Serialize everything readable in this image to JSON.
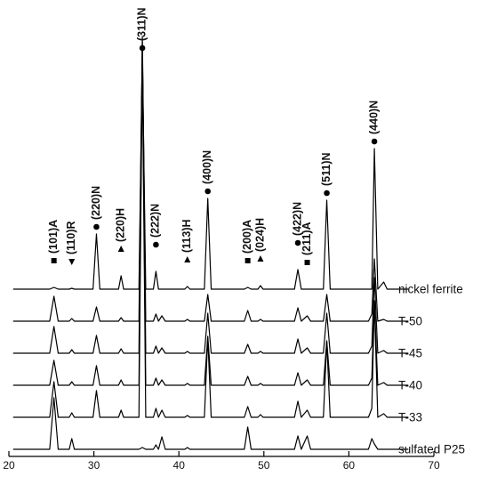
{
  "chart_data": {
    "type": "line",
    "color": "#000000",
    "xlim": [
      20,
      70
    ],
    "xticks": [
      20,
      30,
      40,
      50,
      60,
      70
    ],
    "x": [
      20.5,
      24.8,
      25.3,
      25.8,
      27.1,
      27.4,
      27.7,
      29.9,
      30.3,
      30.7,
      32.9,
      33.2,
      33.5,
      35.3,
      35.7,
      36.1,
      37.0,
      37.3,
      37.6,
      38.0,
      38.4,
      40.7,
      41.0,
      41.3,
      43.0,
      43.4,
      43.8,
      47.7,
      48.1,
      48.5,
      49.3,
      49.6,
      49.9,
      53.6,
      54.0,
      54.4,
      55.1,
      55.5,
      57.0,
      57.4,
      57.8,
      62.3,
      62.7,
      63.0,
      63.4,
      64.1,
      64.5,
      67.0
    ],
    "series": [
      {
        "name": "nickel ferrite",
        "values": [
          0,
          0,
          2,
          0,
          0,
          1,
          0,
          0,
          62,
          0,
          0,
          15,
          0,
          0,
          263,
          0,
          0,
          20,
          0,
          0,
          0,
          0,
          3,
          0,
          0,
          102,
          0,
          0,
          2,
          0,
          0,
          4,
          0,
          0,
          22,
          0,
          0,
          0,
          0,
          100,
          0,
          0,
          0,
          158,
          0,
          8,
          0,
          0
        ]
      },
      {
        "name": "T-50",
        "values": [
          0,
          0,
          28,
          0,
          0,
          3,
          0,
          0,
          16,
          0,
          0,
          4,
          0,
          0,
          320,
          0,
          0,
          8,
          0,
          6,
          0,
          0,
          2,
          0,
          0,
          30,
          0,
          0,
          12,
          0,
          0,
          2,
          0,
          0,
          15,
          0,
          6,
          0,
          0,
          30,
          0,
          0,
          8,
          70,
          0,
          2,
          0,
          0
        ]
      },
      {
        "name": "T-45",
        "values": [
          0,
          0,
          30,
          0,
          0,
          4,
          0,
          0,
          20,
          0,
          0,
          5,
          0,
          0,
          350,
          0,
          0,
          8,
          0,
          6,
          0,
          0,
          2,
          0,
          0,
          45,
          0,
          0,
          10,
          0,
          0,
          2,
          0,
          0,
          16,
          0,
          6,
          0,
          0,
          45,
          0,
          0,
          8,
          85,
          0,
          3,
          0,
          0
        ]
      },
      {
        "name": "T-40",
        "values": [
          0,
          0,
          28,
          0,
          0,
          4,
          0,
          0,
          22,
          0,
          0,
          6,
          0,
          0,
          380,
          0,
          0,
          8,
          0,
          6,
          0,
          0,
          2,
          0,
          0,
          55,
          0,
          0,
          10,
          0,
          0,
          2,
          0,
          0,
          14,
          0,
          6,
          0,
          0,
          50,
          0,
          0,
          8,
          95,
          0,
          3,
          0,
          0
        ]
      },
      {
        "name": "T-33",
        "values": [
          0,
          0,
          40,
          0,
          0,
          5,
          0,
          0,
          30,
          0,
          0,
          8,
          0,
          0,
          400,
          0,
          0,
          10,
          0,
          8,
          0,
          0,
          2,
          0,
          0,
          90,
          0,
          0,
          12,
          0,
          0,
          3,
          0,
          0,
          18,
          0,
          8,
          0,
          0,
          85,
          0,
          0,
          10,
          130,
          0,
          4,
          0,
          0
        ]
      },
      {
        "name": "sulfated P25",
        "values": [
          0,
          0,
          58,
          0,
          0,
          12,
          0,
          0,
          0,
          0,
          0,
          0,
          0,
          0,
          2,
          0,
          0,
          5,
          0,
          14,
          0,
          0,
          2,
          0,
          0,
          0,
          0,
          0,
          25,
          0,
          0,
          0,
          0,
          0,
          15,
          0,
          15,
          0,
          0,
          0,
          0,
          0,
          12,
          6,
          0,
          0,
          0,
          0
        ]
      }
    ],
    "annotations": [
      {
        "label": "(101)A",
        "x": 25.3,
        "marker": "square"
      },
      {
        "label": "(110)R",
        "x": 27.4,
        "marker": "triangle-down"
      },
      {
        "label": "(220)N",
        "x": 30.3,
        "marker": "circle"
      },
      {
        "label": "(220)H",
        "x": 33.2,
        "marker": "triangle-up"
      },
      {
        "label": "(311)N",
        "x": 35.7,
        "marker": "circle"
      },
      {
        "label": "(222)N",
        "x": 37.3,
        "marker": "circle"
      },
      {
        "label": "(113)H",
        "x": 41.0,
        "marker": "triangle-up"
      },
      {
        "label": "(400)N",
        "x": 43.4,
        "marker": "circle"
      },
      {
        "label": "(200)A",
        "x": 48.1,
        "marker": "square"
      },
      {
        "label": "(024)H",
        "x": 49.6,
        "marker": "triangle-up"
      },
      {
        "label": "(422)N",
        "x": 54.0,
        "marker": "circle"
      },
      {
        "label": "(211)A",
        "x": 55.1,
        "marker": "square"
      },
      {
        "label": "(511)N",
        "x": 57.4,
        "marker": "circle"
      },
      {
        "label": "(440)N",
        "x": 63.0,
        "marker": "circle"
      }
    ]
  }
}
